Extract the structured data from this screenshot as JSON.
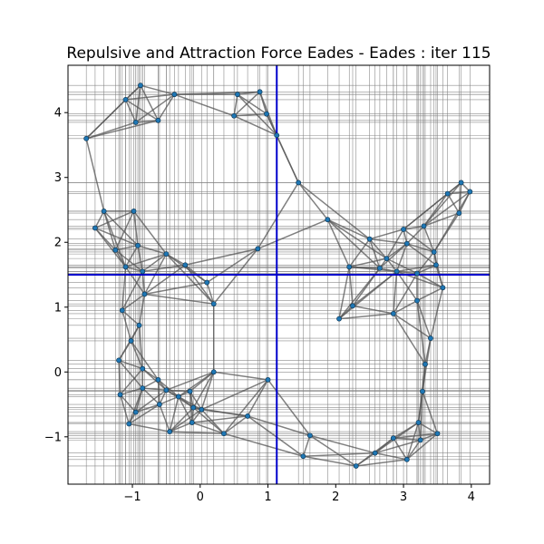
{
  "chart_data": {
    "type": "scatter",
    "title": "Repulsive and Attraction Force Eades - Eades : iter 115",
    "xlabel": "",
    "ylabel": "",
    "xlim": [
      -1.95,
      4.27
    ],
    "ylim": [
      -1.73,
      4.73
    ],
    "xticks": [
      -1,
      0,
      1,
      2,
      3,
      4
    ],
    "yticks": [
      -1,
      0,
      1,
      2,
      3,
      4
    ],
    "xtick_labels": [
      "−1",
      "0",
      "1",
      "2",
      "3",
      "4"
    ],
    "ytick_labels": [
      "−1",
      "0",
      "1",
      "2",
      "3",
      "4"
    ],
    "crosshair": {
      "x": 1.13,
      "y": 1.5,
      "color": "#0000cc"
    },
    "grid": "vertical and horizontal lines through every node coordinate",
    "colors": {
      "node": "#1f77b4",
      "edge": "#555555",
      "grid": "#808080"
    },
    "nodes": [
      {
        "x": -1.68,
        "y": 3.6
      },
      {
        "x": -1.1,
        "y": 4.2
      },
      {
        "x": -0.88,
        "y": 4.42
      },
      {
        "x": -0.38,
        "y": 4.28
      },
      {
        "x": -0.95,
        "y": 3.85
      },
      {
        "x": -0.62,
        "y": 3.88
      },
      {
        "x": 0.55,
        "y": 4.28
      },
      {
        "x": 0.88,
        "y": 4.32
      },
      {
        "x": 0.5,
        "y": 3.95
      },
      {
        "x": 0.98,
        "y": 3.98
      },
      {
        "x": 1.13,
        "y": 3.65
      },
      {
        "x": 1.45,
        "y": 2.92
      },
      {
        "x": -1.55,
        "y": 2.22
      },
      {
        "x": -1.42,
        "y": 2.48
      },
      {
        "x": -0.98,
        "y": 2.48
      },
      {
        "x": -1.25,
        "y": 1.88
      },
      {
        "x": -0.92,
        "y": 1.95
      },
      {
        "x": -1.1,
        "y": 1.62
      },
      {
        "x": -0.5,
        "y": 1.82
      },
      {
        "x": -0.22,
        "y": 1.65
      },
      {
        "x": -0.85,
        "y": 1.55
      },
      {
        "x": 0.1,
        "y": 1.38
      },
      {
        "x": 0.2,
        "y": 1.05
      },
      {
        "x": -0.82,
        "y": 1.2
      },
      {
        "x": 0.85,
        "y": 1.9
      },
      {
        "x": -1.15,
        "y": 0.95
      },
      {
        "x": -0.9,
        "y": 0.72
      },
      {
        "x": -1.02,
        "y": 0.48
      },
      {
        "x": -1.2,
        "y": 0.18
      },
      {
        "x": -0.85,
        "y": 0.05
      },
      {
        "x": -1.18,
        "y": -0.35
      },
      {
        "x": -0.85,
        "y": -0.25
      },
      {
        "x": -0.62,
        "y": -0.12
      },
      {
        "x": -0.5,
        "y": -0.28
      },
      {
        "x": -0.32,
        "y": -0.38
      },
      {
        "x": -0.15,
        "y": -0.3
      },
      {
        "x": -0.6,
        "y": -0.5
      },
      {
        "x": -0.1,
        "y": -0.55
      },
      {
        "x": 0.2,
        "y": 0.0
      },
      {
        "x": 0.02,
        "y": -0.58
      },
      {
        "x": -1.05,
        "y": -0.8
      },
      {
        "x": -0.95,
        "y": -0.62
      },
      {
        "x": -0.45,
        "y": -0.92
      },
      {
        "x": -0.12,
        "y": -0.78
      },
      {
        "x": 0.35,
        "y": -0.95
      },
      {
        "x": 0.7,
        "y": -0.68
      },
      {
        "x": 1.0,
        "y": -0.12
      },
      {
        "x": 1.62,
        "y": -0.98
      },
      {
        "x": 1.52,
        "y": -1.3
      },
      {
        "x": 2.3,
        "y": -1.45
      },
      {
        "x": 2.58,
        "y": -1.25
      },
      {
        "x": 2.85,
        "y": -1.02
      },
      {
        "x": 3.05,
        "y": -1.35
      },
      {
        "x": 3.25,
        "y": -1.05
      },
      {
        "x": 3.22,
        "y": -0.78
      },
      {
        "x": 3.5,
        "y": -0.95
      },
      {
        "x": 3.28,
        "y": -0.3
      },
      {
        "x": 3.32,
        "y": 0.12
      },
      {
        "x": 3.4,
        "y": 0.52
      },
      {
        "x": 2.05,
        "y": 0.82
      },
      {
        "x": 2.85,
        "y": 0.9
      },
      {
        "x": 2.25,
        "y": 1.02
      },
      {
        "x": 3.2,
        "y": 1.1
      },
      {
        "x": 1.88,
        "y": 2.35
      },
      {
        "x": 2.2,
        "y": 1.62
      },
      {
        "x": 2.5,
        "y": 2.05
      },
      {
        "x": 2.75,
        "y": 1.75
      },
      {
        "x": 2.9,
        "y": 1.55
      },
      {
        "x": 3.05,
        "y": 1.98
      },
      {
        "x": 3.3,
        "y": 2.25
      },
      {
        "x": 3.0,
        "y": 2.2
      },
      {
        "x": 3.45,
        "y": 1.85
      },
      {
        "x": 3.48,
        "y": 1.65
      },
      {
        "x": 3.58,
        "y": 1.3
      },
      {
        "x": 3.2,
        "y": 1.52
      },
      {
        "x": 3.65,
        "y": 2.75
      },
      {
        "x": 3.85,
        "y": 2.92
      },
      {
        "x": 3.98,
        "y": 2.78
      },
      {
        "x": 3.82,
        "y": 2.45
      },
      {
        "x": 2.65,
        "y": 1.6
      }
    ]
  }
}
